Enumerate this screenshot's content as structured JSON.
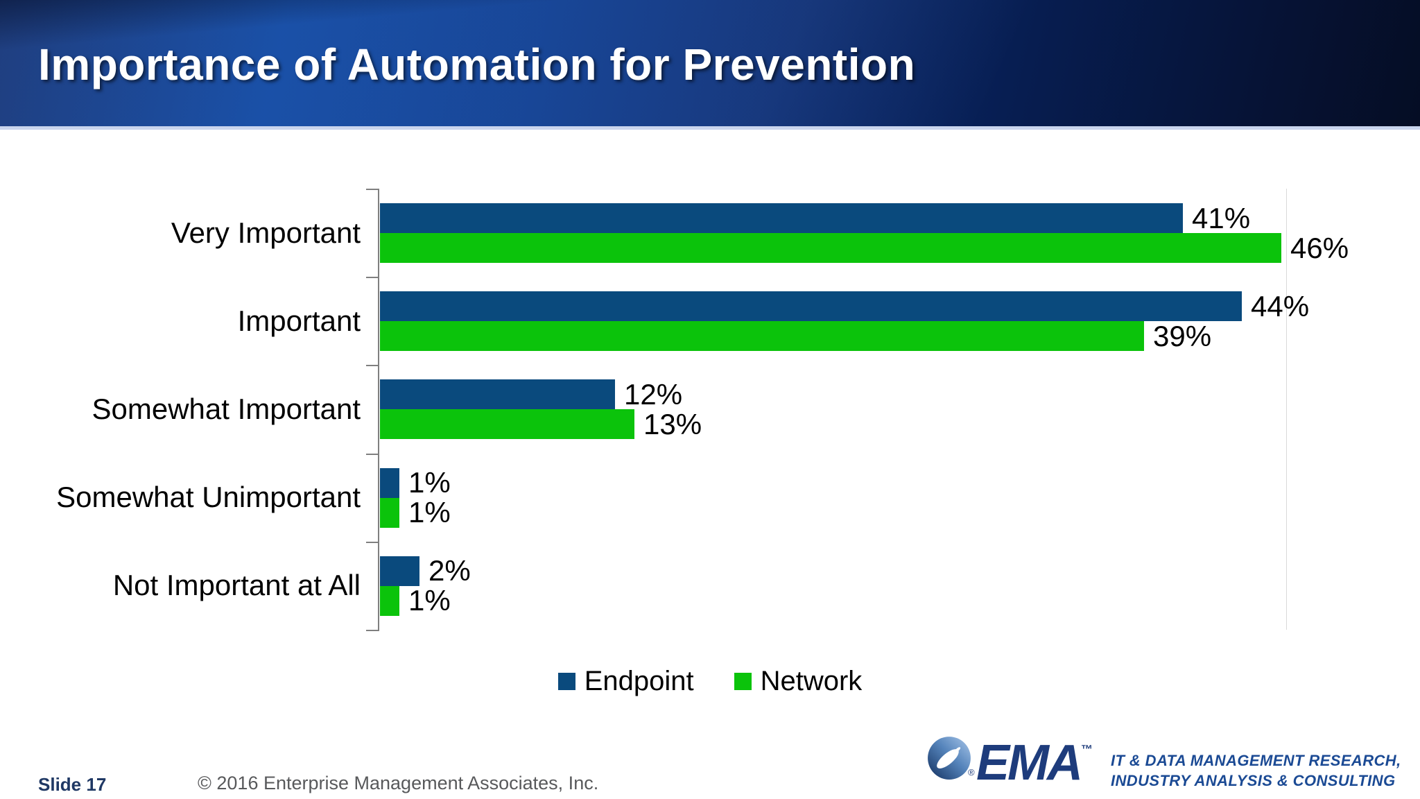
{
  "slide": {
    "title": "Importance of Automation for Prevention",
    "slide_label": "Slide 17",
    "copyright": "© 2016 Enterprise Management Associates, Inc.",
    "logo": {
      "brand": "EMA",
      "trademark": "™",
      "registered": "®",
      "tagline_line1": "IT & DATA MANAGEMENT RESEARCH,",
      "tagline_line2": "INDUSTRY ANALYSIS & CONSULTING"
    }
  },
  "chart_data": {
    "type": "bar",
    "orientation": "horizontal",
    "title": "",
    "categories": [
      "Very Important",
      "Important",
      "Somewhat Important",
      "Somewhat Unimportant",
      "Not Important at All"
    ],
    "series": [
      {
        "name": "Endpoint",
        "color": "#0a4a7d",
        "values": [
          41,
          44,
          12,
          1,
          2
        ]
      },
      {
        "name": "Network",
        "color": "#0bc30b",
        "values": [
          46,
          39,
          13,
          1,
          1
        ]
      }
    ],
    "value_suffix": "%",
    "data_labels": true,
    "xlim": [
      0,
      46.3
    ],
    "grid": false,
    "legend_position": "bottom",
    "axis_color": "#7f7f7f",
    "plot_border_color": "#d9d9d9"
  },
  "colors": {
    "banner_blue_mid": "#0c45a0",
    "banner_navy_dark": "#050d24",
    "banner_separator": "#c9d5ee",
    "endpoint_blue": "#0a4a7d",
    "network_green": "#0bc30b",
    "slide_label_blue": "#1f3864",
    "copyright_gray": "#58595b",
    "ema_blue": "#1e3c7c",
    "tagline_blue": "#1b4a94"
  }
}
